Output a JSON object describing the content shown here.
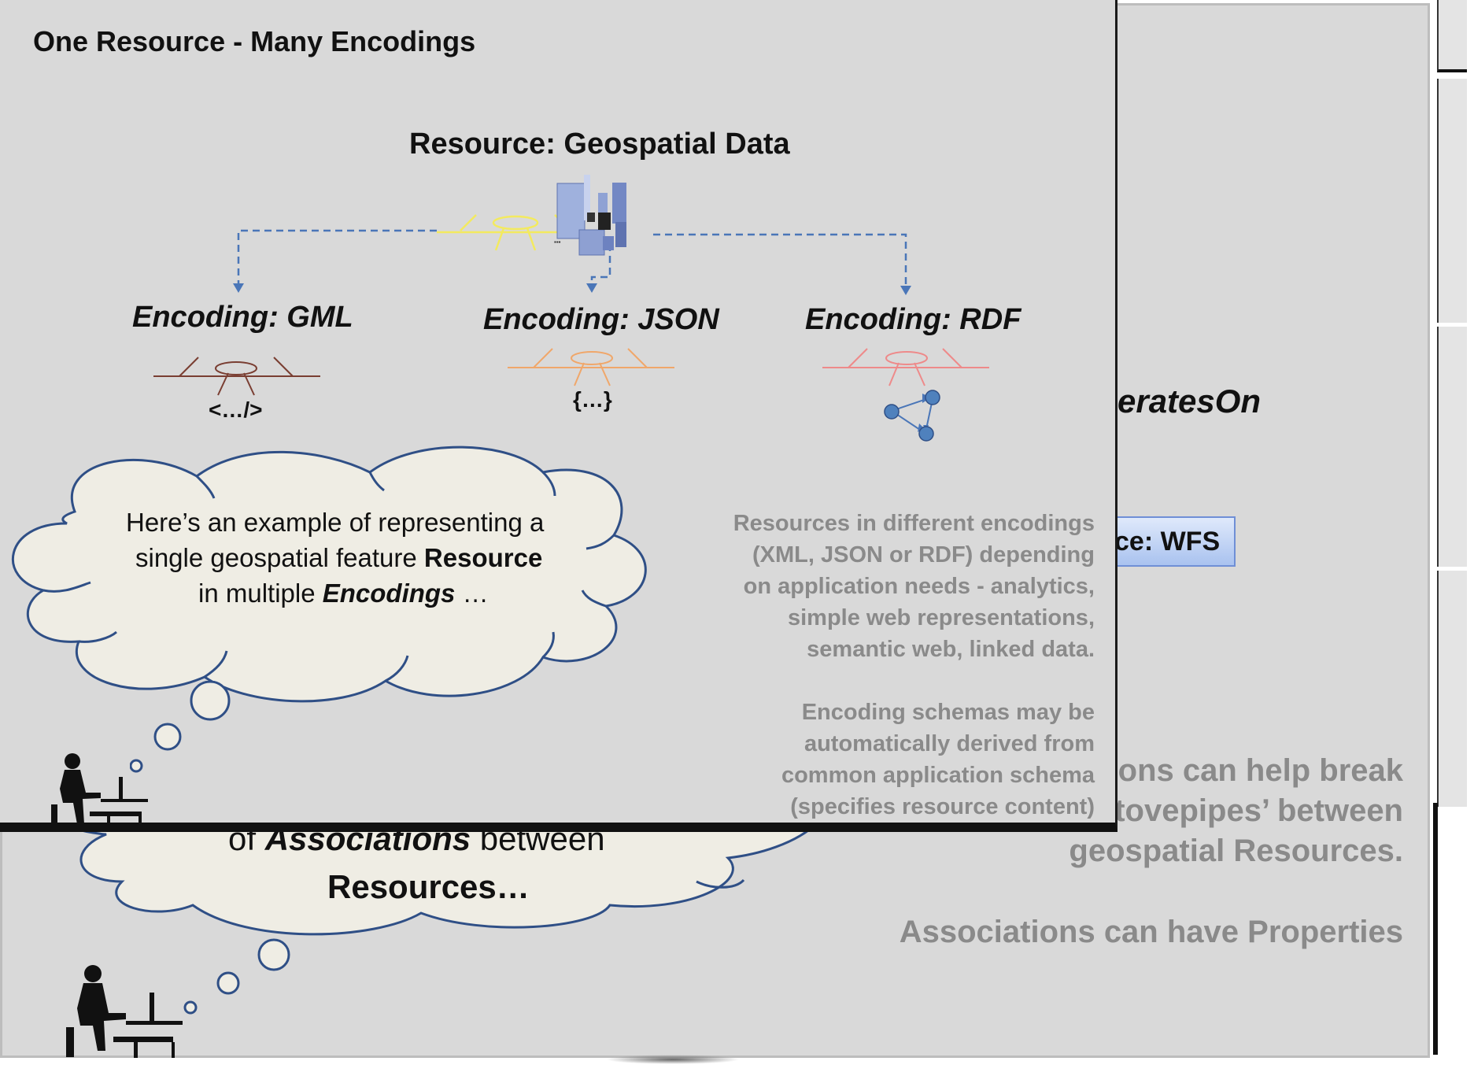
{
  "front_slide": {
    "title": "One Resource - Many Encodings",
    "resource_title": "Resource:  Geospatial Data",
    "encodings": [
      {
        "label": "Encoding:  GML",
        "glyph": "<…/>",
        "color": "#7a3e32"
      },
      {
        "label": "Encoding:  JSON",
        "glyph": "{…}",
        "color": "#f0a76a"
      },
      {
        "label": "Encoding:  RDF",
        "glyph": "",
        "color": "#ee8a8a"
      }
    ],
    "cloud_text": {
      "line1": "Here’s an example of representing a",
      "line2a": "single geospatial feature ",
      "line2b": "Resource",
      "line3a": "in multiple ",
      "line3b": "Encodings",
      "line3c": " …"
    },
    "note1": [
      "Resources in different encodings",
      "(XML, JSON or RDF) depending",
      "on application needs - analytics,",
      "simple web representations,",
      "semantic web, linked data."
    ],
    "note2": [
      "Encoding schemas may be",
      "automatically derived from",
      "common application schema",
      "(specifies resource content)"
    ]
  },
  "back_slide": {
    "operates_on": "eratesOn",
    "wfs_label": "ce: WFS",
    "cloud_line1a": "of ",
    "cloud_line1b": "Associations",
    "cloud_line1c": " between",
    "cloud_line2": "Resources…",
    "note_lines": [
      "tions can help break",
      "stovepipes’ between",
      "geospatial Resources."
    ],
    "note_last": "Associations can have Properties"
  },
  "colors": {
    "slide_bg": "#d9d9d9",
    "cloud_fill": "#efede4",
    "cloud_stroke": "#2f4f86",
    "arrow": "#4a76b8",
    "lollipop_yellow": "#f3ea5f",
    "note_grey": "#8a8a8a"
  }
}
